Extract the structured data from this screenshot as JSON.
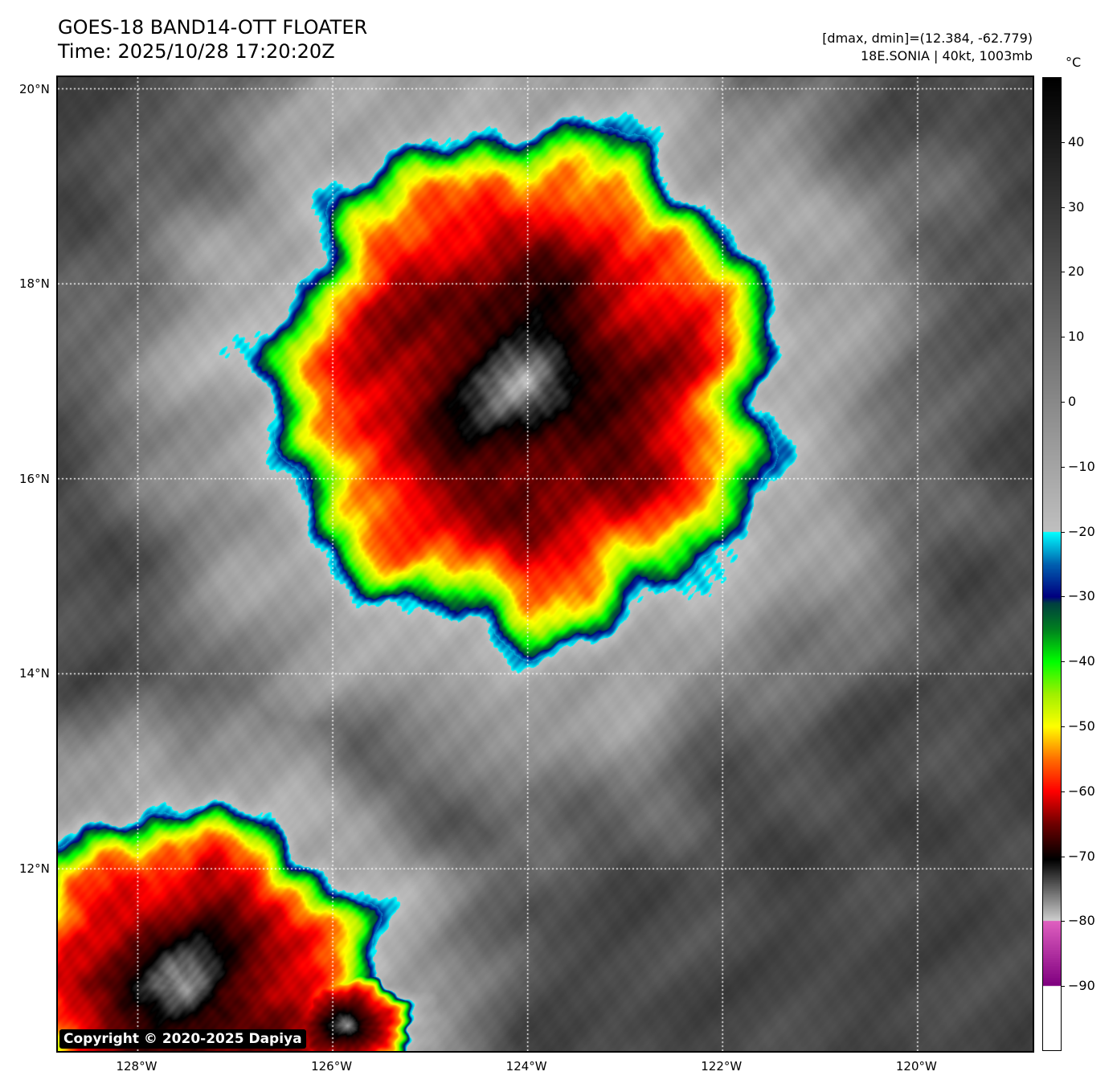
{
  "header": {
    "title": "GOES-18 BAND14-OTT FLOATER",
    "time": "Time: 2025/10/28 17:20:20Z",
    "range": "[dmax, dmin]=(12.384, -62.779)",
    "storm": "18E.SONIA | 40kt, 1003mb"
  },
  "map": {
    "lon_labels": [
      "128°W",
      "126°W",
      "124°W",
      "122°W",
      "120°W"
    ],
    "lat_labels": [
      "20°N",
      "18°N",
      "16°N",
      "14°N",
      "12°N"
    ],
    "lon_values": [
      -128,
      -126,
      -124,
      -122,
      -120
    ],
    "lat_values": [
      20,
      18,
      16,
      14,
      12
    ],
    "lon_range": [
      -128.82,
      -118.82
    ],
    "lat_range": [
      10.13,
      20.12
    ],
    "copyright": "Copyright © 2020-2025 Dapiya"
  },
  "colorbar": {
    "unit": "°C",
    "range": [
      -100,
      50
    ],
    "tick_labels": [
      "40",
      "30",
      "20",
      "10",
      "0",
      "−10",
      "−20",
      "−30",
      "−40",
      "−50",
      "−60",
      "−70",
      "−80",
      "−90"
    ],
    "tick_values": [
      40,
      30,
      20,
      10,
      0,
      -10,
      -20,
      -30,
      -40,
      -50,
      -60,
      -70,
      -80,
      -90
    ],
    "stops": [
      [
        -100,
        "#ffffff"
      ],
      [
        -90.01,
        "#ffffff"
      ],
      [
        -90,
        "#800080"
      ],
      [
        -80.01,
        "#e060c0"
      ],
      [
        -80,
        "#d0d0d0"
      ],
      [
        -70.5,
        "#000000"
      ],
      [
        -65,
        "#700000"
      ],
      [
        -60,
        "#ff0000"
      ],
      [
        -55,
        "#ff7000"
      ],
      [
        -50,
        "#ffff00"
      ],
      [
        -45,
        "#a0f000"
      ],
      [
        -40,
        "#00ff00"
      ],
      [
        -35,
        "#008020"
      ],
      [
        -31,
        "#004040"
      ],
      [
        -30,
        "#000080"
      ],
      [
        -25,
        "#0060b0"
      ],
      [
        -20.01,
        "#00ffff"
      ],
      [
        -20,
        "#c0c0c0"
      ],
      [
        50,
        "#000000"
      ]
    ]
  }
}
